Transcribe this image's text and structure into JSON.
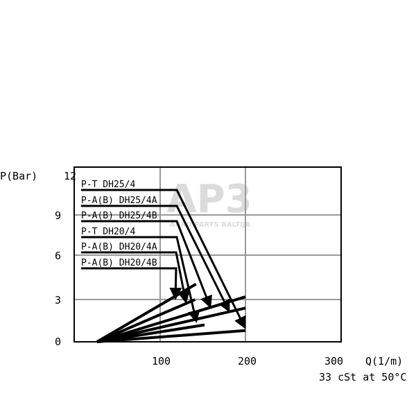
{
  "chart_data": {
    "type": "line",
    "xlabel": "Q(1/m)",
    "ylabel": "P(Bar)",
    "note": "33 cSt at 50°C",
    "xlim": [
      0,
      310
    ],
    "ylim": [
      0,
      12
    ],
    "x_ticks": [
      "100",
      "200",
      "300"
    ],
    "y_ticks": [
      "0",
      "3",
      "6",
      "9",
      "12"
    ],
    "grid": true,
    "legend_placement": "top-left",
    "series": [
      {
        "name": "P-T DH25/4",
        "points": [
          [
            26,
            0
          ],
          [
            200,
            0.8
          ]
        ]
      },
      {
        "name": "P-A(B) DH25/4A",
        "points": [
          [
            26,
            0
          ],
          [
            200,
            2.4
          ]
        ]
      },
      {
        "name": "P-A(B) DH25/4B",
        "points": [
          [
            26,
            0
          ],
          [
            200,
            3.2
          ]
        ]
      },
      {
        "name": "P-T DH20/4",
        "points": [
          [
            26,
            0
          ],
          [
            152,
            1.2
          ]
        ]
      },
      {
        "name": "P-A(B) DH20/4A",
        "points": [
          [
            26,
            0
          ],
          [
            141,
            3.0
          ]
        ]
      },
      {
        "name": "P-A(B) DH20/4B",
        "points": [
          [
            26,
            0
          ],
          [
            142,
            4.1
          ]
        ]
      }
    ]
  },
  "watermark": {
    "logo": "AP3",
    "text": "AGRO PARTS BALTIJA"
  },
  "colors": {
    "line": "#000000",
    "grid": "#999999",
    "watermark": "#c8c8c8"
  }
}
